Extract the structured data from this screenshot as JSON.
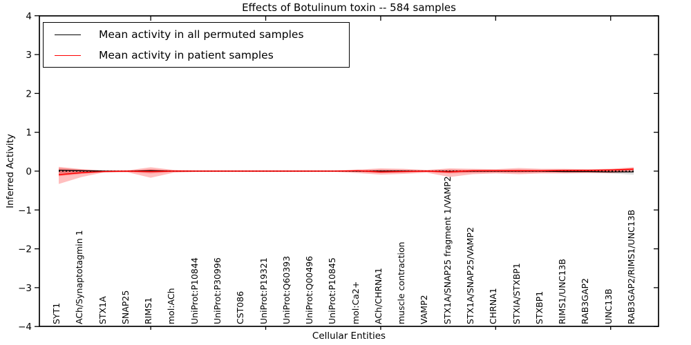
{
  "title": "Effects of Botulinum toxin -- 584 samples",
  "axes": {
    "ylabel": "Inferred Activity",
    "xlabel": "Cellular Entities"
  },
  "legend": {
    "entries": [
      {
        "label": "Mean activity in all permuted samples",
        "color": "#000000"
      },
      {
        "label": "Mean activity in patient samples",
        "color": "#ff0000"
      }
    ]
  },
  "chart_data": {
    "type": "line",
    "title": "Effects of Botulinum toxin -- 584 samples",
    "xlabel": "Cellular Entities",
    "ylabel": "Inferred Activity",
    "ylim": [
      -4,
      4
    ],
    "yticklabels": [
      "−4",
      "−3",
      "−2",
      "−1",
      "0",
      "1",
      "2",
      "3",
      "4"
    ],
    "yticks": [
      -4,
      -3,
      -2,
      -1,
      0,
      1,
      2,
      3,
      4
    ],
    "major_xtick_indices": [
      4,
      9,
      14,
      19,
      24
    ],
    "grid": false,
    "legend_position": "upper left",
    "colors": {
      "patient": "#ff0000",
      "permuted": "#000000",
      "patient_band": "#ff2a2a",
      "permuted_band": "#9a9a9a"
    },
    "categories": [
      "SYT1",
      "ACh/Synaptotagmin 1",
      "STX1A",
      "SNAP25",
      "RIMS1",
      "mol:ACh",
      "UniProt:P10844",
      "UniProt:P30996",
      "CST086",
      "UniProt:P19321",
      "UniProt:Q60393",
      "UniProt:Q00496",
      "UniProt:P10845",
      "mol:Ca2+",
      "ACh/CHRNA1",
      "muscle contraction",
      "VAMP2",
      "STX1A/SNAP25 fragment 1/VAMP2",
      "STX1A/SNAP25/VAMP2",
      "CHRNA1",
      "STXIA/STXBP1",
      "STXBP1",
      "RIMS1/UNC13B",
      "RAB3GAP2",
      "UNC13B",
      "RAB3GAP2/RIMS1/UNC13B"
    ],
    "series": [
      {
        "name": "Mean activity in all permuted samples",
        "color": "#000000",
        "style": "solid",
        "width": 1.3,
        "values": [
          0.02,
          0.01,
          0,
          0,
          0.01,
          0,
          0,
          0,
          0,
          0,
          0,
          0,
          0,
          0,
          0,
          0,
          0,
          -0.01,
          0,
          0,
          0,
          0,
          -0.01,
          -0.01,
          -0.02,
          -0.02
        ]
      },
      {
        "name": "zero reference (dotted)",
        "color": "#000000",
        "style": "dotted",
        "width": 1.4,
        "values": [
          0,
          0,
          0,
          0,
          0,
          0,
          0,
          0,
          0,
          0,
          0,
          0,
          0,
          0,
          0,
          0,
          0,
          0,
          0,
          0,
          0,
          0,
          0,
          0,
          0,
          0
        ]
      },
      {
        "name": "Mean activity in patient samples",
        "color": "#ff0000",
        "style": "solid",
        "width": 1.5,
        "values": [
          -0.09,
          -0.04,
          -0.01,
          0,
          -0.01,
          0,
          0,
          0,
          0,
          0,
          0,
          0,
          0,
          0.01,
          -0.02,
          -0.01,
          0,
          -0.02,
          0.01,
          0.01,
          0.01,
          0.01,
          0.02,
          0.02,
          0.03,
          0.05
        ]
      }
    ],
    "bands": [
      {
        "name": "permuted std band",
        "color": "#9a9a9a",
        "opacity": 0.35,
        "upper": [
          0.05,
          0.03,
          0.01,
          0.01,
          0.03,
          0.01,
          0.01,
          0.01,
          0.01,
          0.01,
          0.01,
          0.01,
          0.01,
          0.01,
          0.02,
          0.02,
          0.01,
          0.02,
          0.02,
          0.02,
          0.02,
          0.02,
          0.02,
          0.02,
          0.02,
          0.03
        ],
        "lower": [
          -0.06,
          -0.03,
          -0.01,
          -0.01,
          -0.03,
          -0.01,
          -0.01,
          -0.01,
          -0.01,
          -0.01,
          -0.01,
          -0.01,
          -0.01,
          -0.02,
          -0.03,
          -0.02,
          -0.01,
          -0.03,
          -0.03,
          -0.03,
          -0.03,
          -0.03,
          -0.04,
          -0.04,
          -0.06,
          -0.09
        ]
      },
      {
        "name": "patient outer band",
        "color": "#ff2a2a",
        "opacity": 0.3,
        "upper": [
          0.11,
          0.05,
          0.02,
          0.02,
          0.1,
          0.03,
          0.02,
          0.02,
          0.02,
          0.02,
          0.02,
          0.02,
          0.02,
          0.04,
          0.07,
          0.06,
          0.03,
          0.07,
          0.06,
          0.05,
          0.08,
          0.06,
          0.06,
          0.05,
          0.06,
          0.1
        ],
        "lower": [
          -0.33,
          -0.15,
          -0.03,
          -0.03,
          -0.17,
          -0.04,
          -0.02,
          -0.02,
          -0.02,
          -0.02,
          -0.02,
          -0.02,
          -0.02,
          -0.05,
          -0.09,
          -0.07,
          -0.04,
          -0.15,
          -0.08,
          -0.06,
          -0.08,
          -0.06,
          -0.06,
          -0.05,
          -0.05,
          -0.02
        ],
        "comment": ""
      },
      {
        "name": "patient inner band",
        "color": "#ff2a2a",
        "opacity": 0.35,
        "upper": [
          0.08,
          0.04,
          0.01,
          0.01,
          0.05,
          0.02,
          0.01,
          0.01,
          0.01,
          0.01,
          0.01,
          0.01,
          0.01,
          0.02,
          0.04,
          0.03,
          0.02,
          0.04,
          0.03,
          0.03,
          0.04,
          0.03,
          0.03,
          0.03,
          0.04,
          0.08
        ],
        "lower": [
          -0.13,
          -0.07,
          -0.02,
          -0.02,
          -0.06,
          -0.02,
          -0.01,
          -0.01,
          -0.01,
          -0.01,
          -0.01,
          -0.01,
          -0.01,
          -0.02,
          -0.05,
          -0.03,
          -0.02,
          -0.06,
          -0.04,
          -0.03,
          -0.04,
          -0.03,
          -0.03,
          -0.03,
          -0.03,
          0.02
        ]
      }
    ]
  }
}
